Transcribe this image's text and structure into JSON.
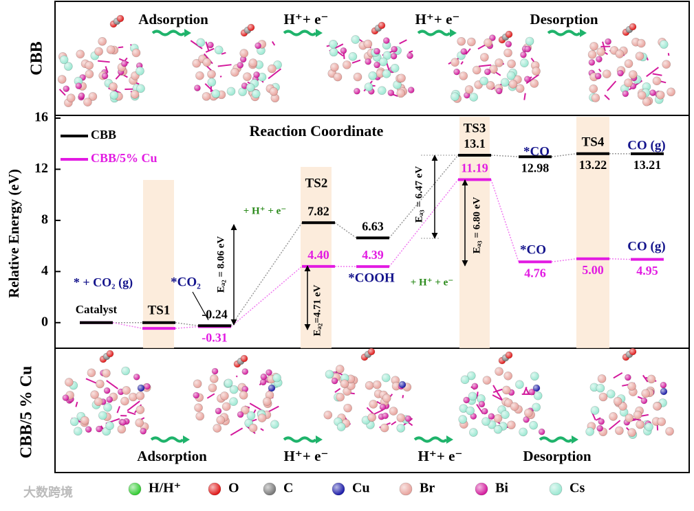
{
  "top_panel": {
    "label": "CBB",
    "steps": [
      "Adsorption",
      "H⁺+ e⁻",
      "H⁺+ e⁻",
      "Desorption"
    ]
  },
  "bottom_panel": {
    "label": "CBB/5 % Cu",
    "steps": [
      "Adsorption",
      "H⁺+ e⁻",
      "H⁺+ e⁻",
      "Desorption"
    ]
  },
  "chart_data": {
    "type": "energy-profile",
    "title": "Reaction Coordinate",
    "y_label": "Relative Energy (eV)",
    "ylim": [
      -2,
      16
    ],
    "yticks": [
      0,
      4,
      8,
      12,
      16
    ],
    "categories": [
      "Catalyst",
      "TS1",
      "*CO₂",
      "TS2",
      "*COOH",
      "TS3",
      "*CO",
      "TS4",
      "CO (g)"
    ],
    "series": [
      {
        "name": "CBB",
        "color": "#000000",
        "values": [
          0,
          0,
          -0.24,
          7.82,
          6.63,
          13.1,
          12.98,
          13.22,
          13.21
        ],
        "value_labels": [
          null,
          null,
          "-0.24",
          "7.82",
          "6.63",
          "13.1",
          "12.98",
          "13.22",
          "13.21"
        ]
      },
      {
        "name": "CBB/5% Cu",
        "color": "#e21be2",
        "values": [
          0,
          -0.45,
          -0.31,
          4.4,
          4.39,
          11.19,
          4.76,
          5.0,
          4.95
        ],
        "value_labels": [
          null,
          null,
          "-0.31",
          "4.40",
          "4.39",
          "11.19",
          "4.76",
          "5.00",
          "4.95"
        ]
      }
    ],
    "annotations": [
      "* + CO₂ (g)",
      "*CO",
      "CO (g)",
      "+ H⁺ + e⁻",
      "+ H⁺ + e⁻",
      "Eₐ₂ = 8.06 eV",
      "Eₐ₂=4.71 eV",
      "Eₐ₃ = 6.47 eV",
      "Eₐ₃ = 6.80 eV"
    ]
  },
  "elements": [
    {
      "name": "H/H⁺",
      "color": "#33cc33"
    },
    {
      "name": "O",
      "color": "#e01818"
    },
    {
      "name": "C",
      "color": "#777777"
    },
    {
      "name": "Cu",
      "color": "#1a1aa8"
    },
    {
      "name": "Br",
      "color": "#e8a39d"
    },
    {
      "name": "Bi",
      "color": "#d3199c"
    },
    {
      "name": "Cs",
      "color": "#9be8d2"
    }
  ],
  "watermark": "大数跨境"
}
